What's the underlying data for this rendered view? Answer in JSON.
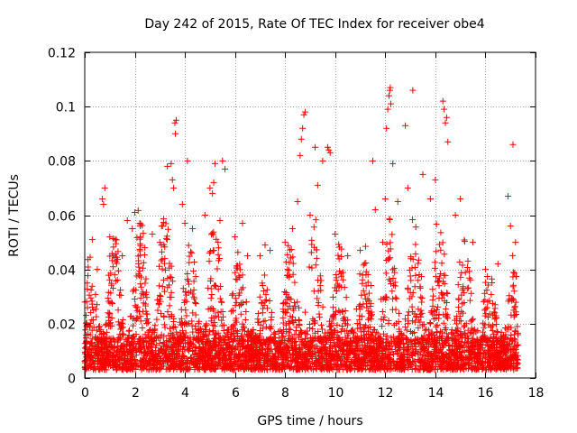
{
  "chart_data": {
    "type": "scatter",
    "title": "Day 242 of 2015, Rate Of TEC Index for receiver obe4",
    "xlabel": "GPS time / hours",
    "ylabel": "ROTI / TECUs",
    "xlim": [
      0,
      18
    ],
    "ylim": [
      0,
      0.12
    ],
    "xticks": [
      0,
      2,
      4,
      6,
      8,
      10,
      12,
      14,
      16,
      18
    ],
    "yticks": [
      0,
      0.02,
      0.04,
      0.06,
      0.08,
      0.1,
      0.12
    ],
    "grid": true,
    "marker": "+",
    "color": "#ff0000",
    "series": [
      {
        "name": "ROTI",
        "points": [
          [
            0.1,
            0.035
          ],
          [
            0.3,
            0.051
          ],
          [
            0.5,
            0.04
          ],
          [
            0.7,
            0.066
          ],
          [
            0.75,
            0.064
          ],
          [
            0.8,
            0.07
          ],
          [
            1.0,
            0.052
          ],
          [
            1.2,
            0.038
          ],
          [
            1.5,
            0.045
          ],
          [
            1.7,
            0.058
          ],
          [
            1.9,
            0.055
          ],
          [
            2.0,
            0.061
          ],
          [
            2.2,
            0.057
          ],
          [
            2.4,
            0.048
          ],
          [
            2.7,
            0.053
          ],
          [
            3.0,
            0.05
          ],
          [
            3.3,
            0.078
          ],
          [
            3.45,
            0.079
          ],
          [
            3.5,
            0.073
          ],
          [
            3.55,
            0.07
          ],
          [
            3.6,
            0.094
          ],
          [
            3.65,
            0.095
          ],
          [
            3.62,
            0.09
          ],
          [
            3.9,
            0.064
          ],
          [
            4.0,
            0.057
          ],
          [
            4.1,
            0.08
          ],
          [
            4.3,
            0.055
          ],
          [
            4.8,
            0.06
          ],
          [
            5.0,
            0.07
          ],
          [
            5.1,
            0.068
          ],
          [
            5.15,
            0.072
          ],
          [
            5.2,
            0.079
          ],
          [
            5.4,
            0.058
          ],
          [
            5.5,
            0.08
          ],
          [
            5.6,
            0.077
          ],
          [
            6.0,
            0.052
          ],
          [
            6.3,
            0.057
          ],
          [
            6.5,
            0.045
          ],
          [
            7.0,
            0.045
          ],
          [
            7.2,
            0.049
          ],
          [
            7.4,
            0.047
          ],
          [
            8.0,
            0.05
          ],
          [
            8.3,
            0.055
          ],
          [
            8.5,
            0.065
          ],
          [
            8.6,
            0.082
          ],
          [
            8.65,
            0.088
          ],
          [
            8.7,
            0.092
          ],
          [
            8.75,
            0.097
          ],
          [
            8.8,
            0.098
          ],
          [
            9.0,
            0.06
          ],
          [
            9.2,
            0.085
          ],
          [
            9.3,
            0.071
          ],
          [
            9.5,
            0.08
          ],
          [
            9.7,
            0.085
          ],
          [
            9.75,
            0.084
          ],
          [
            9.8,
            0.083
          ],
          [
            10.0,
            0.053
          ],
          [
            10.5,
            0.045
          ],
          [
            11.0,
            0.047
          ],
          [
            11.5,
            0.08
          ],
          [
            11.6,
            0.062
          ],
          [
            11.9,
            0.05
          ],
          [
            12.0,
            0.066
          ],
          [
            12.05,
            0.092
          ],
          [
            12.1,
            0.099
          ],
          [
            12.15,
            0.104
          ],
          [
            12.18,
            0.106
          ],
          [
            12.2,
            0.107
          ],
          [
            12.22,
            0.101
          ],
          [
            12.3,
            0.079
          ],
          [
            12.5,
            0.065
          ],
          [
            12.8,
            0.093
          ],
          [
            12.9,
            0.07
          ],
          [
            13.1,
            0.106
          ],
          [
            13.5,
            0.075
          ],
          [
            13.8,
            0.066
          ],
          [
            14.0,
            0.073
          ],
          [
            14.3,
            0.102
          ],
          [
            14.35,
            0.099
          ],
          [
            14.4,
            0.094
          ],
          [
            14.45,
            0.096
          ],
          [
            14.5,
            0.087
          ],
          [
            14.8,
            0.06
          ],
          [
            15.0,
            0.066
          ],
          [
            15.5,
            0.05
          ],
          [
            16.0,
            0.04
          ],
          [
            16.5,
            0.042
          ],
          [
            16.9,
            0.067
          ],
          [
            17.0,
            0.056
          ],
          [
            17.1,
            0.086
          ],
          [
            17.2,
            0.05
          ]
        ],
        "density_profile": [
          [
            0.0,
            0.033
          ],
          [
            0.5,
            0.04
          ],
          [
            1.0,
            0.045
          ],
          [
            1.5,
            0.042
          ],
          [
            2.0,
            0.05
          ],
          [
            2.5,
            0.046
          ],
          [
            3.0,
            0.044
          ],
          [
            3.5,
            0.05
          ],
          [
            4.0,
            0.04
          ],
          [
            4.5,
            0.038
          ],
          [
            5.0,
            0.048
          ],
          [
            5.5,
            0.046
          ],
          [
            6.0,
            0.038
          ],
          [
            6.5,
            0.03
          ],
          [
            7.0,
            0.028
          ],
          [
            7.5,
            0.03
          ],
          [
            8.0,
            0.036
          ],
          [
            8.5,
            0.045
          ],
          [
            9.0,
            0.048
          ],
          [
            9.5,
            0.046
          ],
          [
            10.0,
            0.04
          ],
          [
            10.5,
            0.036
          ],
          [
            11.0,
            0.036
          ],
          [
            11.5,
            0.04
          ],
          [
            12.0,
            0.046
          ],
          [
            12.5,
            0.044
          ],
          [
            13.0,
            0.046
          ],
          [
            13.5,
            0.045
          ],
          [
            14.0,
            0.046
          ],
          [
            14.5,
            0.044
          ],
          [
            15.0,
            0.042
          ],
          [
            15.5,
            0.038
          ],
          [
            16.0,
            0.03
          ],
          [
            16.5,
            0.03
          ],
          [
            17.0,
            0.036
          ],
          [
            17.3,
            0.03
          ]
        ],
        "x_range": [
          0,
          17.3
        ],
        "y_floor": 0.003
      }
    ]
  }
}
